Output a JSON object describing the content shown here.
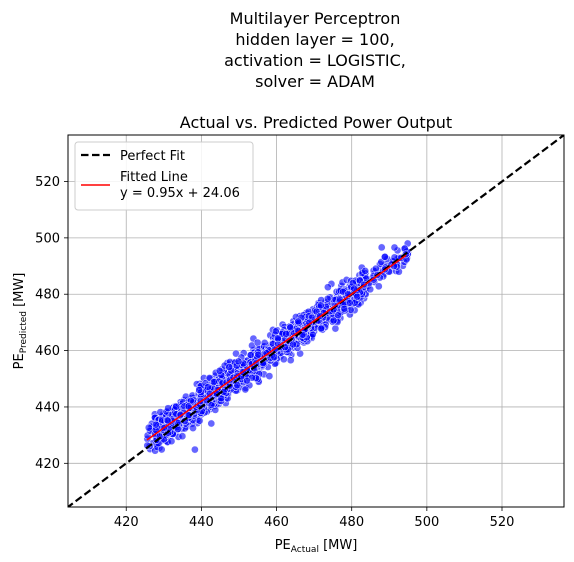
{
  "chart_data": {
    "type": "scatter",
    "suptitle_lines": [
      "Multilayer Perceptron",
      "hidden layer = 100,",
      "activation = LOGISTIC,",
      "solver = ADAM"
    ],
    "title": "Actual vs. Predicted Power Output",
    "xlabel": {
      "base": "PE",
      "sub": "Actual",
      "unit": " [MW]"
    },
    "ylabel": {
      "base": "PE",
      "sub": "Predicted",
      "unit": " [MW]"
    },
    "xlim": [
      404.5,
      536.5
    ],
    "ylim": [
      404.5,
      536.5
    ],
    "xticks": [
      420,
      440,
      460,
      480,
      500,
      520
    ],
    "yticks": [
      420,
      440,
      460,
      480,
      500,
      520
    ],
    "grid": true,
    "legend_position": "upper-left",
    "legend": [
      {
        "label": "Perfect Fit",
        "style": "dashed",
        "color": "#000000"
      },
      {
        "label_lines": [
          "Fitted Line",
          "y = 0.95x + 24.06"
        ],
        "style": "solid",
        "color": "#ff0000"
      }
    ],
    "points_color": "#0000ff",
    "points_note_range_x": [
      425.5,
      495.5
    ],
    "fit": {
      "slope": 0.95,
      "intercept": 24.06,
      "x_range": [
        425.5,
        494.5
      ]
    },
    "perfect_fit": {
      "slope": 1,
      "intercept": 0
    }
  }
}
